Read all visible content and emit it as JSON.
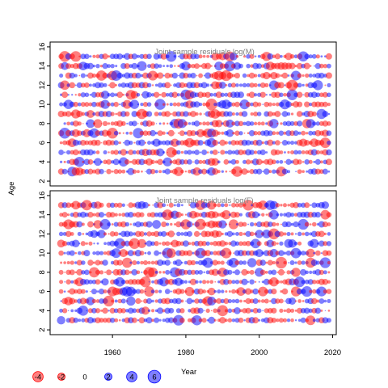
{
  "chart_data": {
    "type": "bubble-matrix",
    "xlabel": "Year",
    "ylabel": "Age",
    "xlim": [
      1943,
      2021
    ],
    "x_ticks": [
      1960,
      1980,
      2000,
      2020
    ],
    "y_ticks": [
      2,
      4,
      6,
      8,
      10,
      12,
      14,
      16
    ],
    "years": [
      1946,
      2019
    ],
    "ages": [
      3,
      15
    ],
    "colors": {
      "positive": "#0000ff",
      "negative": "#ff0000"
    },
    "fill_opacity": 0.5,
    "panels": [
      {
        "title": "Joint sample residuals log(M)",
        "ylim": [
          1.5,
          16.5
        ]
      },
      {
        "title": "Joint sample residuals log(F)",
        "ylim": [
          1.5,
          16.5
        ]
      }
    ],
    "legend": {
      "position": "bottom-left",
      "values": [
        -4,
        -2,
        0,
        2,
        4,
        6
      ],
      "labels": [
        "-4",
        "-2",
        "0",
        "2",
        "4",
        "6"
      ]
    }
  }
}
